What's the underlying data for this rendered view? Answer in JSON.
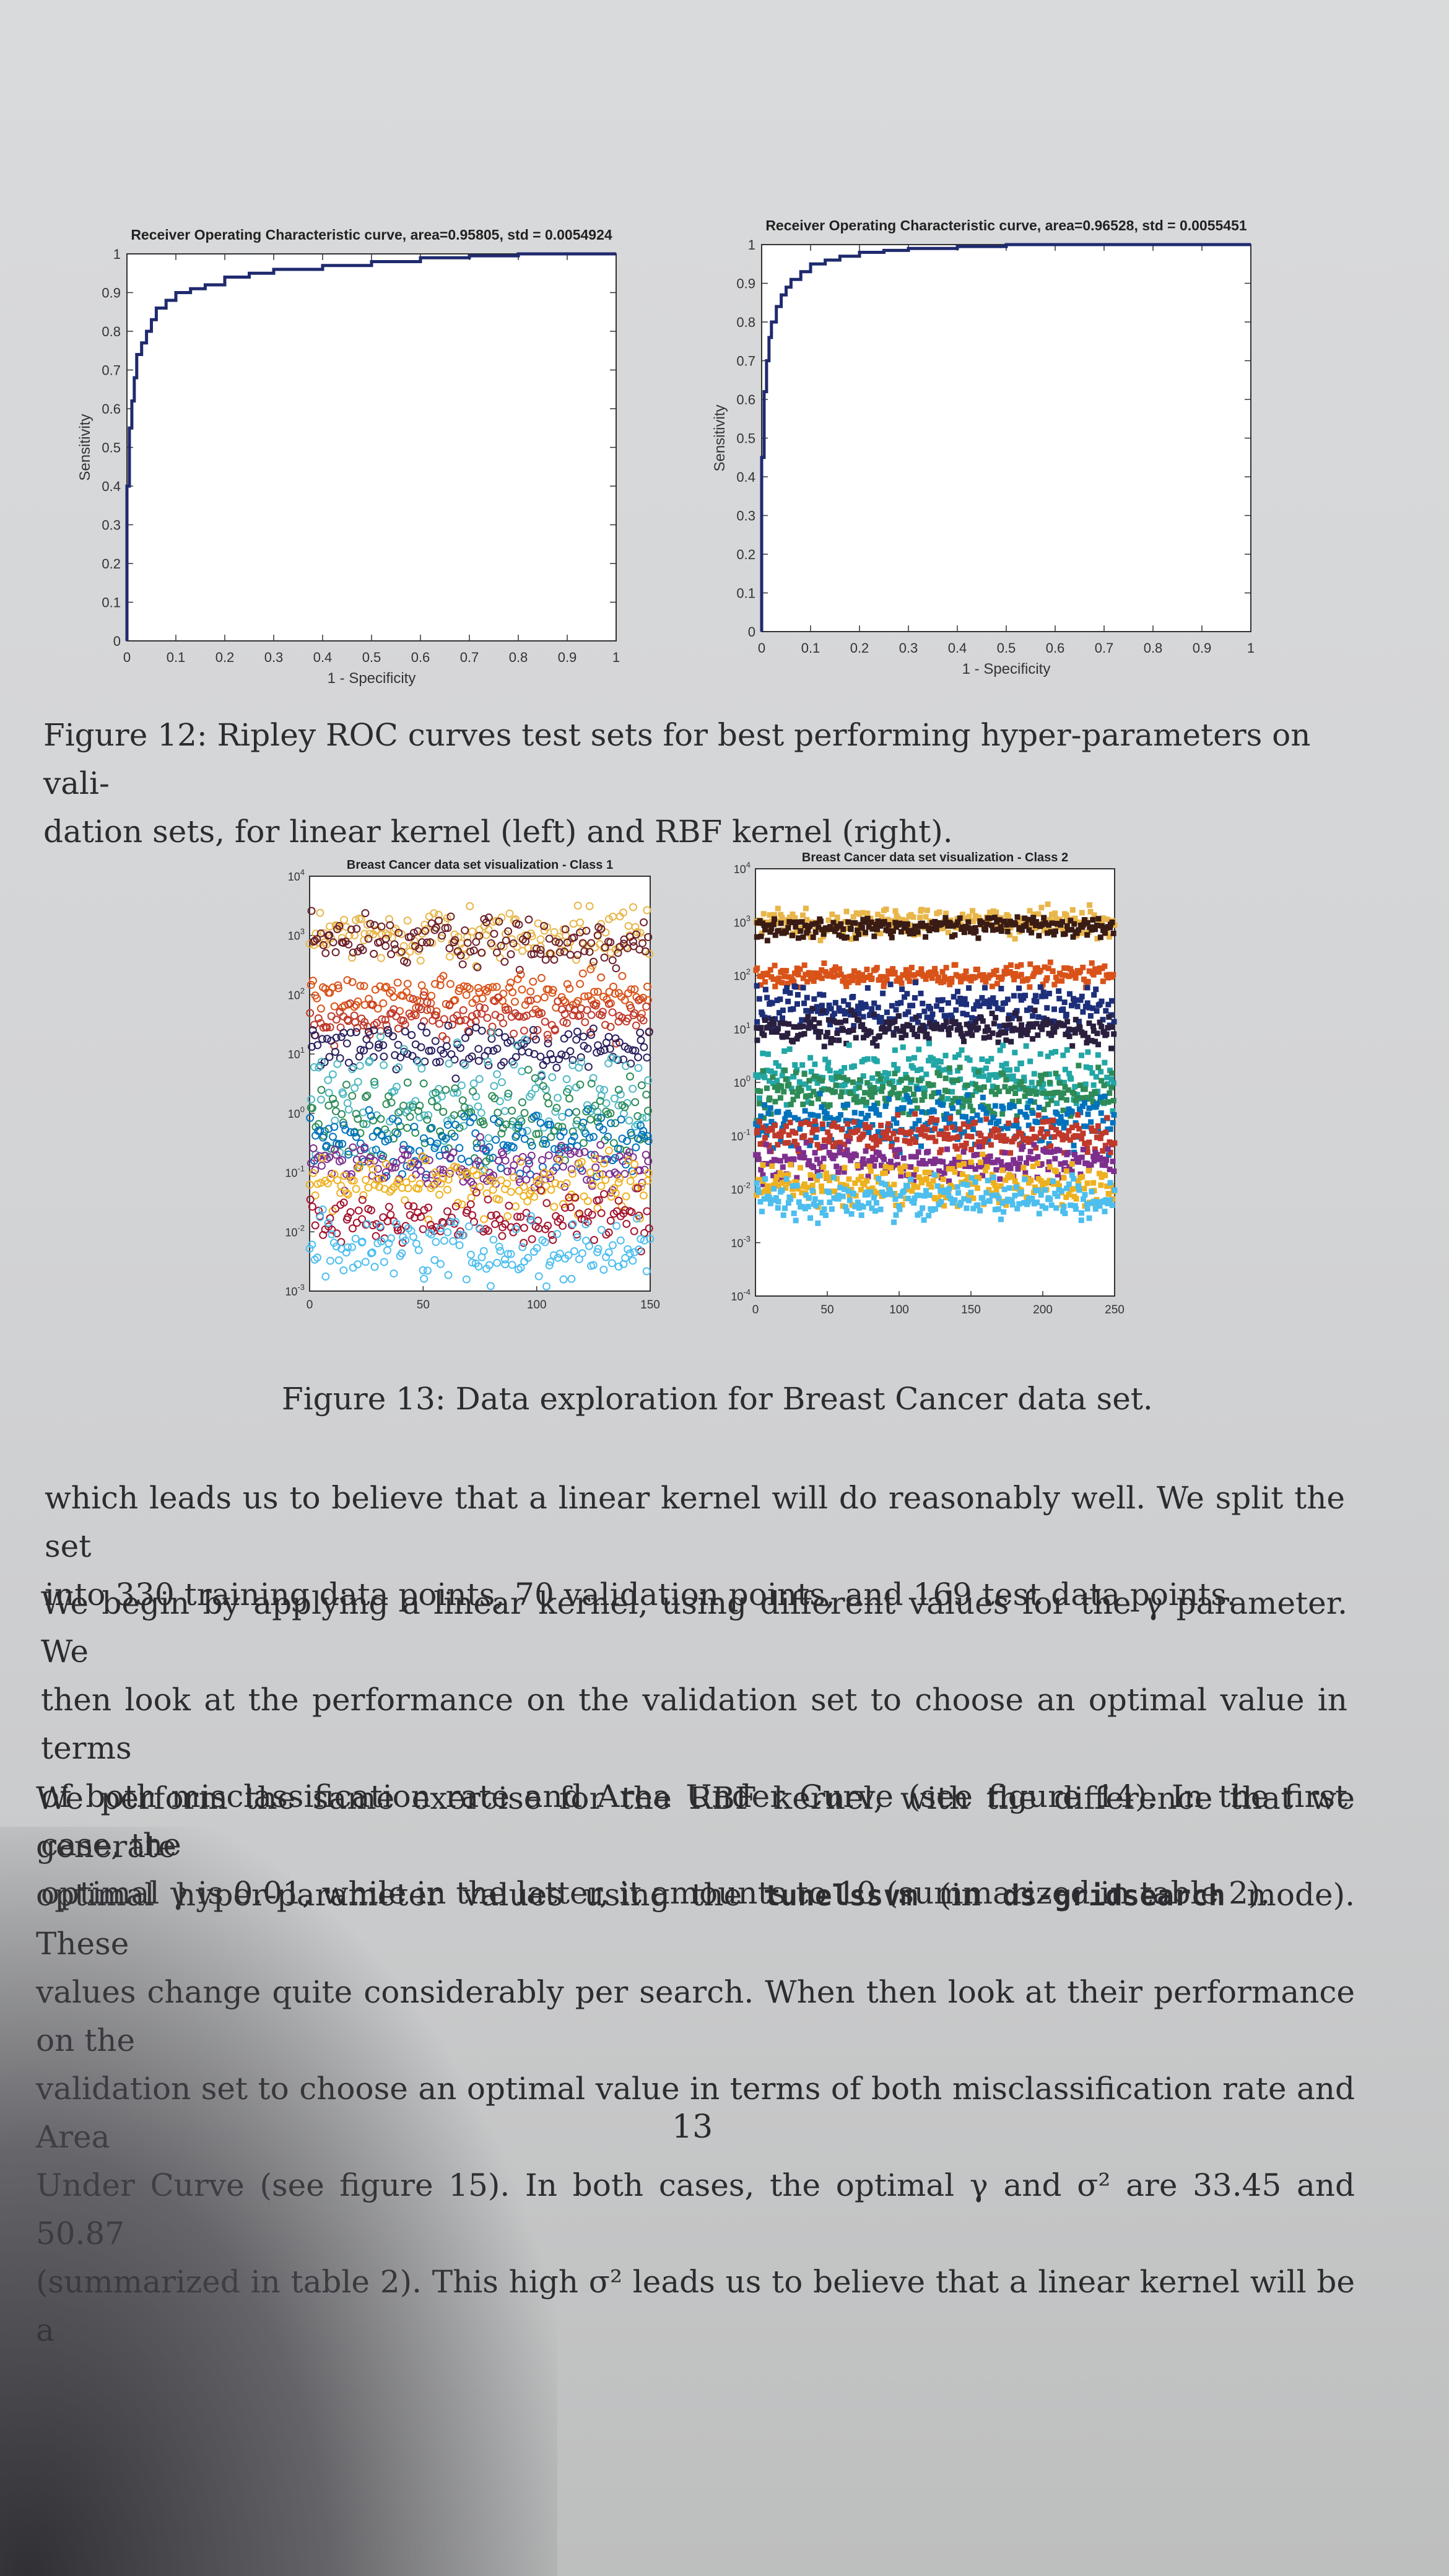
{
  "figure12": {
    "caption": "Figure 12: Ripley ROC curves test sets for best performing hyper-parameters on validation sets, for linear kernel (left) and RBF kernel (right).",
    "caption_line1": "Figure 12: Ripley ROC curves test sets for best performing hyper-parameters on vali-",
    "caption_line2": "dation sets, for linear kernel (left) and RBF kernel (right)."
  },
  "figure13": {
    "caption": "Figure 13: Data exploration for Breast Cancer data set."
  },
  "chart_data": [
    {
      "type": "line",
      "title": "Receiver Operating Characteristic curve, area=0.95805, std = 0.0054924",
      "xlabel": "1 - Specificity",
      "ylabel": "Sensitivity",
      "xlim": [
        0,
        1
      ],
      "ylim": [
        0,
        1
      ],
      "xticks": [
        "0",
        "0.1",
        "0.2",
        "0.3",
        "0.4",
        "0.5",
        "0.6",
        "0.7",
        "0.8",
        "0.9",
        "1"
      ],
      "yticks": [
        "0",
        "0.1",
        "0.2",
        "0.3",
        "0.4",
        "0.5",
        "0.6",
        "0.7",
        "0.8",
        "0.9",
        "1"
      ],
      "series": [
        {
          "color": "#1f2a6e",
          "x": [
            0,
            0,
            0.005,
            0.01,
            0.015,
            0.02,
            0.03,
            0.04,
            0.05,
            0.06,
            0.08,
            0.1,
            0.13,
            0.16,
            0.2,
            0.25,
            0.3,
            0.4,
            0.5,
            0.6,
            0.7,
            0.8,
            0.9,
            1
          ],
          "y": [
            0,
            0.4,
            0.55,
            0.62,
            0.68,
            0.74,
            0.77,
            0.8,
            0.83,
            0.86,
            0.88,
            0.9,
            0.91,
            0.92,
            0.94,
            0.95,
            0.96,
            0.97,
            0.98,
            0.99,
            0.995,
            1,
            1,
            1
          ]
        }
      ]
    },
    {
      "type": "line",
      "title": "Receiver Operating Characteristic curve, area=0.96528, std = 0.0055451",
      "xlabel": "1 - Specificity",
      "ylabel": "Sensitivity",
      "xlim": [
        0,
        1
      ],
      "ylim": [
        0,
        1
      ],
      "xticks": [
        "0",
        "0.1",
        "0.2",
        "0.3",
        "0.4",
        "0.5",
        "0.6",
        "0.7",
        "0.8",
        "0.9",
        "1"
      ],
      "yticks": [
        "0",
        "0.1",
        "0.2",
        "0.3",
        "0.4",
        "0.5",
        "0.6",
        "0.7",
        "0.8",
        "0.9",
        "1"
      ],
      "series": [
        {
          "color": "#1f2a6e",
          "x": [
            0,
            0,
            0.005,
            0.01,
            0.015,
            0.02,
            0.03,
            0.04,
            0.05,
            0.06,
            0.08,
            0.1,
            0.13,
            0.16,
            0.2,
            0.25,
            0.3,
            0.4,
            0.5,
            0.6,
            0.7,
            0.8,
            0.9,
            1
          ],
          "y": [
            0,
            0.45,
            0.62,
            0.7,
            0.76,
            0.8,
            0.84,
            0.87,
            0.89,
            0.91,
            0.93,
            0.95,
            0.96,
            0.97,
            0.98,
            0.985,
            0.99,
            0.995,
            1,
            1,
            1,
            1,
            1,
            1
          ]
        }
      ]
    },
    {
      "type": "scatter",
      "title": "Breast Cancer data set visualization - Class 1",
      "marker": "open-circle",
      "xlim": [
        0,
        150
      ],
      "xticks": [
        "0",
        "50",
        "100",
        "150"
      ],
      "yscale": "log",
      "ylim_log10": [
        -3,
        4
      ],
      "ytick_exponents": [
        "4",
        "3",
        "2",
        "1",
        "0",
        "-1",
        "-2",
        "-3"
      ],
      "series": [
        {
          "color": "#e8b64a",
          "log10_y_center": 3.0,
          "spread": 0.35
        },
        {
          "color": "#6b1f2a",
          "log10_y_center": 2.9,
          "spread": 0.3
        },
        {
          "color": "#d95319",
          "log10_y_center": 2.0,
          "spread": 0.25
        },
        {
          "color": "#c0392b",
          "log10_y_center": 1.6,
          "spread": 0.25
        },
        {
          "color": "#2a1f5e",
          "log10_y_center": 1.1,
          "spread": 0.3
        },
        {
          "color": "#4fb8c2",
          "log10_y_center": 0.3,
          "spread": 0.7
        },
        {
          "color": "#2e8b57",
          "log10_y_center": -0.1,
          "spread": 0.5
        },
        {
          "color": "#0072bd",
          "log10_y_center": -0.5,
          "spread": 0.4
        },
        {
          "color": "#7e2f8e",
          "log10_y_center": -0.9,
          "spread": 0.3
        },
        {
          "color": "#edb120",
          "log10_y_center": -1.2,
          "spread": 0.35
        },
        {
          "color": "#a2142f",
          "log10_y_center": -1.8,
          "spread": 0.3
        },
        {
          "color": "#4dbeee",
          "log10_y_center": -2.3,
          "spread": 0.4
        }
      ]
    },
    {
      "type": "scatter",
      "title": "Breast Cancer data set visualization - Class 2",
      "marker": "filled-square",
      "xlim": [
        0,
        250
      ],
      "xticks": [
        "0",
        "50",
        "100",
        "150",
        "200",
        "250"
      ],
      "yscale": "log",
      "ylim_log10": [
        -4,
        4
      ],
      "ytick_exponents": [
        "4",
        "3",
        "2",
        "1",
        "0",
        "-1",
        "-2",
        "-3",
        "-4"
      ],
      "series": [
        {
          "color": "#e8b64a",
          "log10_y_center": 3.0,
          "spread": 0.2
        },
        {
          "color": "#3a1c14",
          "log10_y_center": 2.9,
          "spread": 0.15
        },
        {
          "color": "#d95319",
          "log10_y_center": 2.0,
          "spread": 0.15
        },
        {
          "color": "#1d2f7a",
          "log10_y_center": 1.4,
          "spread": 0.3
        },
        {
          "color": "#2a1f3e",
          "log10_y_center": 1.0,
          "spread": 0.2
        },
        {
          "color": "#22a6a6",
          "log10_y_center": 0.1,
          "spread": 0.4
        },
        {
          "color": "#2e8b57",
          "log10_y_center": -0.2,
          "spread": 0.3
        },
        {
          "color": "#0072bd",
          "log10_y_center": -0.7,
          "spread": 0.35
        },
        {
          "color": "#c0392b",
          "log10_y_center": -1.0,
          "spread": 0.25
        },
        {
          "color": "#7e2f8e",
          "log10_y_center": -1.5,
          "spread": 0.25
        },
        {
          "color": "#edb120",
          "log10_y_center": -1.9,
          "spread": 0.3
        },
        {
          "color": "#4dbeee",
          "log10_y_center": -2.2,
          "spread": 0.3
        }
      ]
    }
  ],
  "body": {
    "p1_l1": "which leads us to believe that a linear kernel will do reasonably well. We split the set",
    "p1_l2": "into 330 training data points, 70 validation points, and 169 test data points.",
    "p2_l1": "We begin by applying a linear kernel, using different values for the γ parameter. We",
    "p2_l2": "then look at the performance on the validation set to choose an optimal value in terms",
    "p2_l3": "of both misclassification rate and Area Under Curve (see figure 14). In the first case, the",
    "p2_l4": "optimal γ is 0.01, while in the latter, it amounts to 10 (summarized in table 2).",
    "p3_l1": "We perform the same exercise for the RBF kernel, with the difference that we generate",
    "p3_l2a": "optimal hyper-parameter values using the ",
    "p3_l2_code1": "tunelssvm",
    "p3_l2b": " (in ",
    "p3_l2_code2": "ds-gridsearch",
    "p3_l2c": " mode). These",
    "p3_l3": "values change quite considerably per search. When then look at their performance on the",
    "p3_l4": "validation set to choose an optimal value in terms of both misclassification rate and Area",
    "p3_l5": "Under Curve (see figure 15). In both cases, the optimal γ and σ² are 33.45 and 50.87",
    "p3_l6": "(summarized in table 2). This high σ² leads us to believe that a linear kernel will be a"
  },
  "page_number": "13"
}
